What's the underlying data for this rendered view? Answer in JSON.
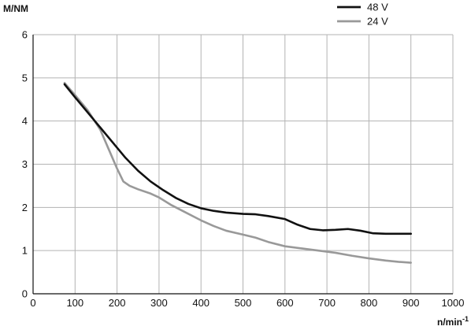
{
  "chart_data": {
    "type": "line",
    "title": "",
    "ylabel": "M/NM",
    "xlabel_main": "n/min",
    "xlabel_sup": "-1",
    "xlim": [
      0,
      1000
    ],
    "ylim": [
      0,
      6
    ],
    "xticks": [
      0,
      100,
      200,
      300,
      400,
      500,
      600,
      700,
      800,
      900,
      1000
    ],
    "yticks": [
      0,
      1,
      2,
      3,
      4,
      5,
      6
    ],
    "grid": true,
    "legend_position": "top-right",
    "series": [
      {
        "name": "48 V",
        "color": "#111111",
        "points": [
          [
            75,
            4.85
          ],
          [
            100,
            4.55
          ],
          [
            130,
            4.2
          ],
          [
            160,
            3.85
          ],
          [
            190,
            3.5
          ],
          [
            220,
            3.15
          ],
          [
            250,
            2.85
          ],
          [
            280,
            2.6
          ],
          [
            310,
            2.4
          ],
          [
            340,
            2.22
          ],
          [
            370,
            2.08
          ],
          [
            400,
            1.98
          ],
          [
            430,
            1.92
          ],
          [
            460,
            1.88
          ],
          [
            500,
            1.85
          ],
          [
            530,
            1.84
          ],
          [
            560,
            1.8
          ],
          [
            600,
            1.73
          ],
          [
            630,
            1.6
          ],
          [
            660,
            1.5
          ],
          [
            690,
            1.47
          ],
          [
            720,
            1.48
          ],
          [
            750,
            1.5
          ],
          [
            780,
            1.46
          ],
          [
            810,
            1.4
          ],
          [
            840,
            1.39
          ],
          [
            870,
            1.39
          ],
          [
            900,
            1.39
          ]
        ]
      },
      {
        "name": "24 V",
        "color": "#999999",
        "points": [
          [
            75,
            4.88
          ],
          [
            100,
            4.6
          ],
          [
            130,
            4.25
          ],
          [
            160,
            3.8
          ],
          [
            180,
            3.35
          ],
          [
            200,
            2.9
          ],
          [
            215,
            2.6
          ],
          [
            230,
            2.5
          ],
          [
            250,
            2.42
          ],
          [
            280,
            2.32
          ],
          [
            300,
            2.23
          ],
          [
            330,
            2.05
          ],
          [
            360,
            1.9
          ],
          [
            400,
            1.7
          ],
          [
            430,
            1.57
          ],
          [
            460,
            1.46
          ],
          [
            500,
            1.37
          ],
          [
            530,
            1.3
          ],
          [
            560,
            1.2
          ],
          [
            600,
            1.1
          ],
          [
            640,
            1.05
          ],
          [
            680,
            1.0
          ],
          [
            720,
            0.95
          ],
          [
            760,
            0.88
          ],
          [
            800,
            0.82
          ],
          [
            840,
            0.77
          ],
          [
            870,
            0.74
          ],
          [
            900,
            0.72
          ]
        ]
      }
    ]
  }
}
